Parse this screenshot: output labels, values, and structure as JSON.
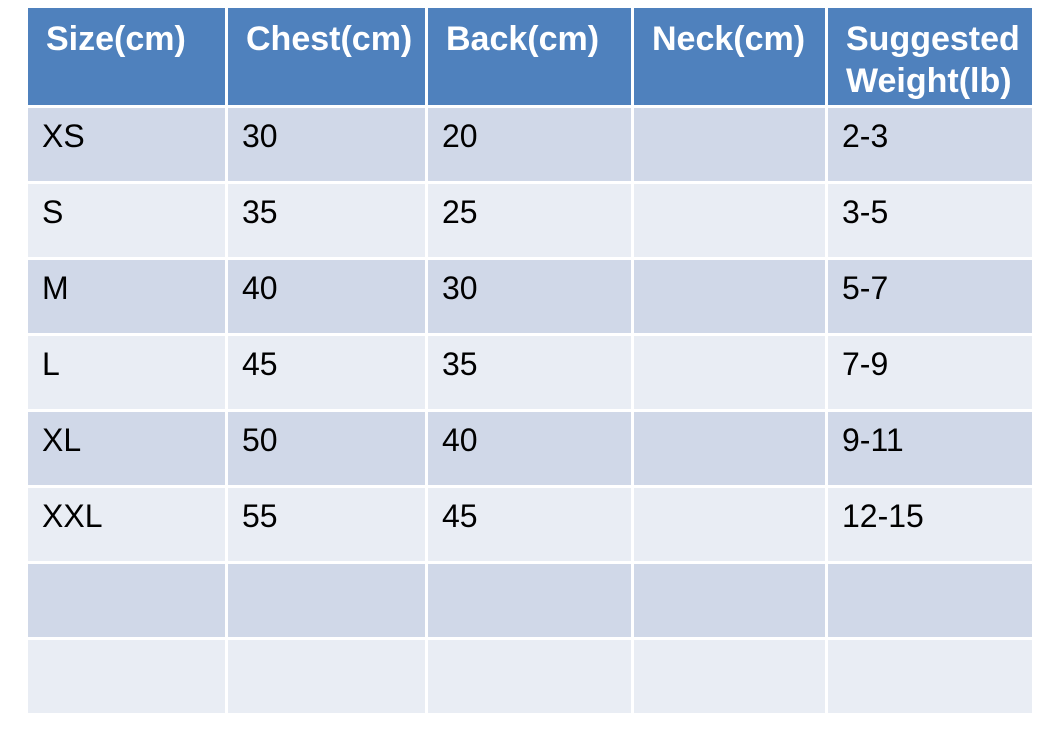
{
  "table": {
    "headers": [
      "Size(cm)",
      "Chest(cm)",
      "Back(cm)",
      "Neck(cm)",
      "Suggested Weight(lb)"
    ],
    "rows": [
      [
        "XS",
        "30",
        "20",
        "",
        "2-3"
      ],
      [
        "S",
        "35",
        "25",
        "",
        "3-5"
      ],
      [
        "M",
        "40",
        "30",
        "",
        "5-7"
      ],
      [
        "L",
        "45",
        "35",
        "",
        "7-9"
      ],
      [
        "XL",
        "50",
        "40",
        "",
        "9-11"
      ],
      [
        "XXL",
        "55",
        "45",
        "",
        "12-15"
      ],
      [
        "",
        "",
        "",
        "",
        ""
      ],
      [
        "",
        "",
        "",
        "",
        ""
      ]
    ]
  },
  "colors": {
    "header_bg": "#4f81bd",
    "row_odd_bg": "#d0d8e8",
    "row_even_bg": "#e9edf4",
    "header_text": "#ffffff"
  }
}
